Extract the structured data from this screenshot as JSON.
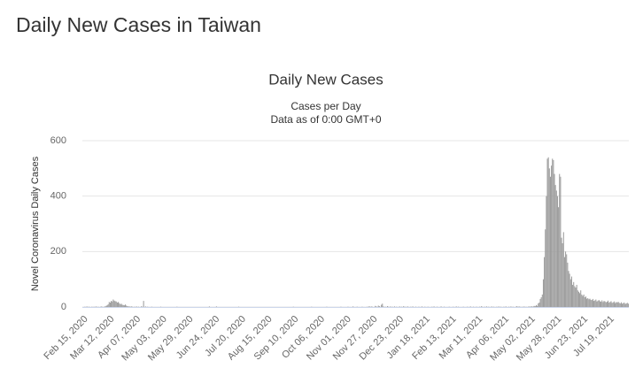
{
  "page_title": "Daily New Cases in Taiwan",
  "chart_data": {
    "type": "bar",
    "title": "Daily New Cases",
    "subtitle": [
      "Cases per Day",
      "Data as of 0:00 GMT+0"
    ],
    "y_label": "Novel Coronavirus Daily Cases",
    "color": "#999999",
    "grid": true,
    "ylim": [
      0,
      600
    ],
    "yticks": [
      0,
      200,
      400,
      600
    ],
    "categories": [
      "Feb 15, 2020",
      null,
      null,
      null,
      null,
      null,
      null,
      null,
      null,
      null,
      null,
      null,
      null,
      null,
      null,
      null,
      null,
      null,
      null,
      null,
      null,
      null,
      null,
      null,
      null,
      null,
      "Mar 12, 2020",
      null,
      null,
      null,
      null,
      null,
      null,
      null,
      null,
      null,
      null,
      null,
      null,
      null,
      null,
      null,
      null,
      null,
      null,
      null,
      null,
      null,
      null,
      null,
      null,
      null,
      "Apr 07, 2020",
      null,
      null,
      null,
      null,
      null,
      null,
      null,
      null,
      null,
      null,
      null,
      null,
      null,
      null,
      null,
      null,
      null,
      null,
      null,
      null,
      null,
      null,
      null,
      null,
      null,
      "May 03, 2020",
      null,
      null,
      null,
      null,
      null,
      null,
      null,
      null,
      null,
      null,
      null,
      null,
      null,
      null,
      null,
      null,
      null,
      null,
      null,
      null,
      null,
      null,
      null,
      null,
      null,
      "May 29, 2020",
      null,
      null,
      null,
      null,
      null,
      null,
      null,
      null,
      null,
      null,
      null,
      null,
      null,
      null,
      null,
      null,
      null,
      null,
      null,
      null,
      null,
      null,
      null,
      null,
      null,
      "Jun 24, 2020",
      null,
      null,
      null,
      null,
      null,
      null,
      null,
      null,
      null,
      null,
      null,
      null,
      null,
      null,
      null,
      null,
      null,
      null,
      null,
      null,
      null,
      null,
      null,
      null,
      null,
      "Jul 20, 2020",
      null,
      null,
      null,
      null,
      null,
      null,
      null,
      null,
      null,
      null,
      null,
      null,
      null,
      null,
      null,
      null,
      null,
      null,
      null,
      null,
      null,
      null,
      null,
      null,
      null,
      "Aug 15, 2020",
      null,
      null,
      null,
      null,
      null,
      null,
      null,
      null,
      null,
      null,
      null,
      null,
      null,
      null,
      null,
      null,
      null,
      null,
      null,
      null,
      null,
      null,
      null,
      null,
      null,
      "Sep 10, 2020",
      null,
      null,
      null,
      null,
      null,
      null,
      null,
      null,
      null,
      null,
      null,
      null,
      null,
      null,
      null,
      null,
      null,
      null,
      null,
      null,
      null,
      null,
      null,
      null,
      null,
      "Oct 06, 2020",
      null,
      null,
      null,
      null,
      null,
      null,
      null,
      null,
      null,
      null,
      null,
      null,
      null,
      null,
      null,
      null,
      null,
      null,
      null,
      null,
      null,
      null,
      null,
      null,
      null,
      "Nov 01, 2020",
      null,
      null,
      null,
      null,
      null,
      null,
      null,
      null,
      null,
      null,
      null,
      null,
      null,
      null,
      null,
      null,
      null,
      null,
      null,
      null,
      null,
      null,
      null,
      null,
      null,
      "Nov 27, 2020",
      null,
      null,
      null,
      null,
      null,
      null,
      null,
      null,
      null,
      null,
      null,
      null,
      null,
      null,
      null,
      null,
      null,
      null,
      null,
      null,
      null,
      null,
      null,
      null,
      null,
      "Dec 23, 2020",
      null,
      null,
      null,
      null,
      null,
      null,
      null,
      null,
      null,
      null,
      null,
      null,
      null,
      null,
      null,
      null,
      null,
      null,
      null,
      null,
      null,
      null,
      null,
      null,
      null,
      "Jan 18, 2021",
      null,
      null,
      null,
      null,
      null,
      null,
      null,
      null,
      null,
      null,
      null,
      null,
      null,
      null,
      null,
      null,
      null,
      null,
      null,
      null,
      null,
      null,
      null,
      null,
      null,
      "Feb 13, 2021",
      null,
      null,
      null,
      null,
      null,
      null,
      null,
      null,
      null,
      null,
      null,
      null,
      null,
      null,
      null,
      null,
      null,
      null,
      null,
      null,
      null,
      null,
      null,
      null,
      null,
      "Mar 11, 2021",
      null,
      null,
      null,
      null,
      null,
      null,
      null,
      null,
      null,
      null,
      null,
      null,
      null,
      null,
      null,
      null,
      null,
      null,
      null,
      null,
      null,
      null,
      null,
      null,
      null,
      "Apr 06, 2021",
      null,
      null,
      null,
      null,
      null,
      null,
      null,
      null,
      null,
      null,
      null,
      null,
      null,
      null,
      null,
      null,
      null,
      null,
      null,
      null,
      null,
      null,
      null,
      null,
      null,
      "May 02, 2021",
      null,
      null,
      null,
      null,
      null,
      null,
      null,
      null,
      null,
      null,
      null,
      null,
      null,
      null,
      null,
      null,
      null,
      null,
      null,
      null,
      null,
      null,
      null,
      null,
      null,
      "May 28, 2021",
      null,
      null,
      null,
      null,
      null,
      null,
      null,
      null,
      null,
      null,
      null,
      null,
      null,
      null,
      null,
      null,
      null,
      null,
      null,
      null,
      null,
      null,
      null,
      null,
      null,
      "Jun 23, 2021",
      null,
      null,
      null,
      null,
      null,
      null,
      null,
      null,
      null,
      null,
      null,
      null,
      null,
      null,
      null,
      null,
      null,
      null,
      null,
      null,
      null,
      null,
      null,
      null,
      null,
      "Jul 19, 2021",
      null,
      null,
      null,
      null,
      null,
      null,
      null,
      null,
      null,
      null,
      null,
      null,
      null,
      null,
      null,
      null,
      null,
      null,
      null
    ],
    "values": [
      0,
      0,
      1,
      0,
      2,
      0,
      1,
      0,
      0,
      1,
      0,
      1,
      0,
      2,
      0,
      1,
      0,
      0,
      2,
      1,
      0,
      1,
      2,
      4,
      6,
      10,
      18,
      16,
      22,
      20,
      27,
      23,
      21,
      20,
      16,
      18,
      14,
      10,
      12,
      8,
      7,
      6,
      9,
      5,
      3,
      2,
      2,
      1,
      2,
      1,
      0,
      1,
      0,
      2,
      0,
      1,
      0,
      0,
      3,
      0,
      22,
      0,
      2,
      0,
      1,
      0,
      0,
      0,
      1,
      0,
      0,
      0,
      0,
      0,
      0,
      0,
      0,
      1,
      0,
      0,
      0,
      0,
      0,
      0,
      0,
      0,
      0,
      0,
      0,
      0,
      0,
      0,
      0,
      1,
      0,
      0,
      0,
      0,
      0,
      0,
      0,
      0,
      0,
      0,
      0,
      0,
      0,
      0,
      0,
      0,
      0,
      0,
      0,
      0,
      0,
      0,
      0,
      0,
      0,
      0,
      0,
      0,
      0,
      0,
      0,
      2,
      0,
      0,
      0,
      0,
      0,
      0,
      2,
      0,
      0,
      0,
      0,
      0,
      0,
      0,
      0,
      0,
      0,
      0,
      0,
      0,
      0,
      0,
      0,
      0,
      0,
      0,
      0,
      0,
      1,
      0,
      0,
      0,
      0,
      0,
      0,
      0,
      0,
      0,
      0,
      0,
      0,
      0,
      0,
      0,
      0,
      0,
      0,
      0,
      0,
      0,
      0,
      0,
      0,
      0,
      0,
      0,
      0,
      0,
      0,
      0,
      0,
      0,
      0,
      0,
      0,
      0,
      0,
      0,
      0,
      0,
      0,
      0,
      0,
      0,
      0,
      0,
      0,
      0,
      0,
      0,
      0,
      0,
      1,
      0,
      0,
      0,
      0,
      0,
      0,
      0,
      0,
      0,
      0,
      0,
      0,
      0,
      0,
      0,
      0,
      0,
      1,
      0,
      0,
      0,
      0,
      0,
      0,
      0,
      0,
      0,
      0,
      0,
      0,
      0,
      0,
      1,
      0,
      0,
      0,
      0,
      0,
      0,
      0,
      0,
      0,
      0,
      0,
      0,
      0,
      1,
      0,
      0,
      0,
      0,
      0,
      0,
      1,
      0,
      0,
      0,
      0,
      2,
      0,
      0,
      0,
      1,
      0,
      0,
      0,
      0,
      1,
      0,
      0,
      0,
      0,
      1,
      0,
      3,
      0,
      2,
      1,
      0,
      0,
      4,
      2,
      0,
      5,
      3,
      0,
      8,
      12,
      2,
      0,
      1,
      0,
      3,
      1,
      0,
      2,
      0,
      1,
      0,
      2,
      0,
      1,
      0,
      0,
      2,
      0,
      1,
      0,
      3,
      0,
      1,
      0,
      2,
      0,
      0,
      1,
      0,
      2,
      0,
      0,
      1,
      0,
      0,
      1,
      0,
      0,
      2,
      0,
      0,
      1,
      0,
      0,
      1,
      0,
      0,
      0,
      1,
      0,
      2,
      0,
      0,
      1,
      0,
      0,
      0,
      2,
      0,
      0,
      1,
      0,
      0,
      0,
      0,
      1,
      0,
      0,
      0,
      1,
      0,
      0,
      2,
      0,
      1,
      0,
      0,
      0,
      0,
      1,
      0,
      0,
      0,
      1,
      0,
      0,
      2,
      0,
      0,
      1,
      0,
      0,
      1,
      0,
      0,
      1,
      0,
      3,
      0,
      0,
      1,
      0,
      2,
      0,
      1,
      0,
      0,
      2,
      0,
      1,
      0,
      0,
      1,
      0,
      2,
      0,
      1,
      0,
      0,
      1,
      0,
      2,
      0,
      0,
      1,
      0,
      2,
      0,
      1,
      0,
      0,
      1,
      3,
      0,
      2,
      1,
      0,
      1,
      0,
      2,
      0,
      1,
      0,
      1,
      2,
      0,
      3,
      1,
      2,
      4,
      3,
      7,
      4,
      13,
      16,
      29,
      35,
      45,
      100,
      180,
      280,
      400,
      535,
      540,
      500,
      470,
      510,
      535,
      530,
      480,
      440,
      420,
      400,
      360,
      480,
      470,
      250,
      230,
      270,
      180,
      200,
      190,
      160,
      130,
      120,
      100,
      110,
      80,
      90,
      75,
      70,
      80,
      60,
      55,
      50,
      60,
      45,
      40,
      45,
      35,
      38,
      30,
      32,
      28,
      30,
      26,
      25,
      29,
      22,
      24,
      27,
      20,
      23,
      25,
      21,
      19,
      24,
      18,
      22,
      20,
      17,
      19,
      23,
      16,
      18,
      21,
      15,
      17,
      20,
      14,
      18,
      16,
      19,
      15,
      13,
      17,
      12,
      14,
      16,
      11,
      13,
      15,
      12
    ]
  }
}
